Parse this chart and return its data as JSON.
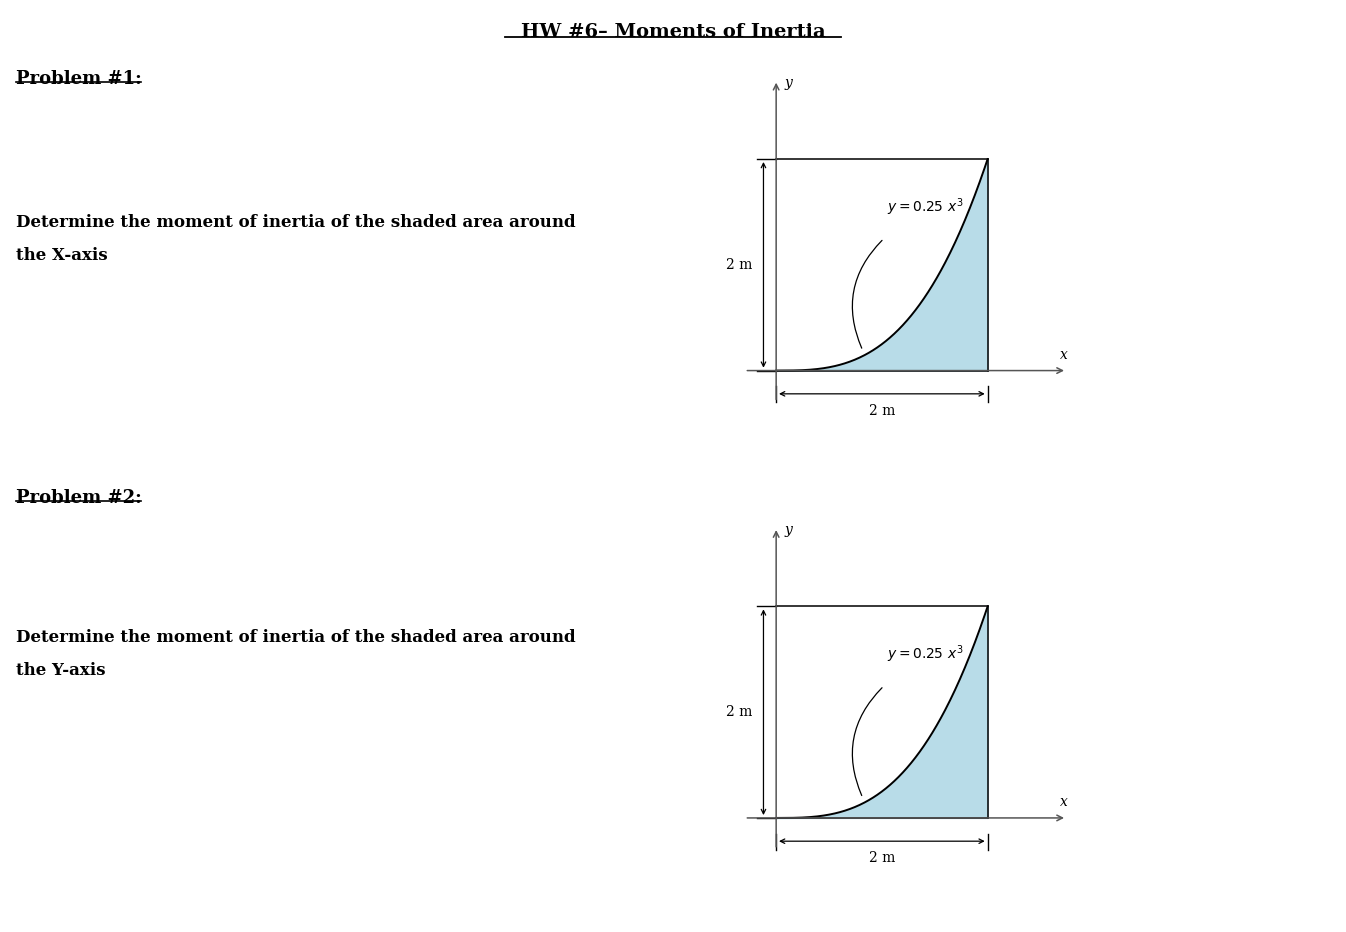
{
  "title": "HW #6– Moments of Inertia",
  "title_fontsize": 14,
  "bg_color": "#ffffff",
  "problem1_label": "Problem #1:",
  "problem1_desc_line1": "Determine the moment of inertia of the shaded area around",
  "problem1_desc_line2": "the X-axis",
  "problem2_label": "Problem #2:",
  "problem2_desc_line1": "Determine the moment of inertia of the shaded area around",
  "problem2_desc_line2": "the Y-axis",
  "dim_label": "2 m",
  "shaded_color": "#b8dce8",
  "axis_color": "#555555",
  "text_color": "#000000",
  "dim_text_fontsize": 10,
  "eq_fontsize": 10,
  "label_fontsize": 13,
  "desc_fontsize": 12
}
